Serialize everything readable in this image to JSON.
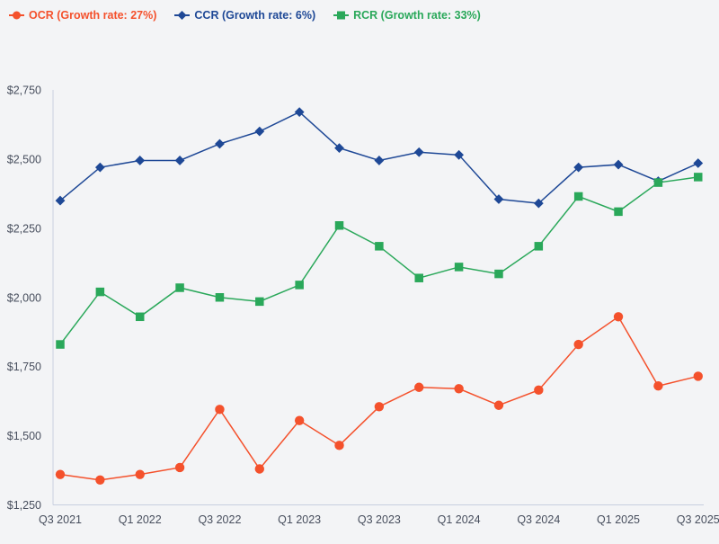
{
  "page": {
    "background": "#f3f4f6"
  },
  "chart_data": {
    "type": "line",
    "x": [
      "Q3 2021",
      "Q4 2021",
      "Q1 2022",
      "Q2 2022",
      "Q3 2022",
      "Q4 2022",
      "Q1 2023",
      "Q2 2023",
      "Q3 2023",
      "Q4 2023",
      "Q1 2024",
      "Q2 2024",
      "Q3 2024",
      "Q4 2024",
      "Q1 2025",
      "Q2 2025",
      "Q3 2025"
    ],
    "x_tick_labels": [
      "Q3 2021",
      "Q1 2022",
      "Q3 2022",
      "Q1 2023",
      "Q3 2023",
      "Q1 2024",
      "Q3 2024",
      "Q1 2025",
      "Q3 2025"
    ],
    "y_ticks": [
      1250,
      1500,
      1750,
      2000,
      2250,
      2500,
      2750
    ],
    "y_tick_labels": [
      "$1,250",
      "$1,500",
      "$1,750",
      "$2,000",
      "$2,250",
      "$2,500",
      "$2,750"
    ],
    "ylim": [
      1250,
      2750
    ],
    "grid": false,
    "legend_position": "top-left",
    "axis_color": "#c8cfe0",
    "tick_color": "#474e5d",
    "series": [
      {
        "name": "OCR",
        "label": "OCR (Growth rate: 27%)",
        "growth_rate": "27%",
        "color": "#f4512c",
        "marker": "circle",
        "values": [
          1360,
          1340,
          1360,
          1385,
          1595,
          1380,
          1555,
          1465,
          1605,
          1675,
          1670,
          1610,
          1665,
          1830,
          1930,
          1680,
          1715
        ]
      },
      {
        "name": "CCR",
        "label": "CCR (Growth rate: 6%)",
        "growth_rate": "6%",
        "color": "#1e4896",
        "marker": "diamond",
        "values": [
          2350,
          2470,
          2495,
          2495,
          2555,
          2600,
          2670,
          2540,
          2495,
          2525,
          2515,
          2355,
          2340,
          2470,
          2480,
          2420,
          2485
        ]
      },
      {
        "name": "RCR",
        "label": "RCR (Growth rate: 33%)",
        "growth_rate": "33%",
        "color": "#2aa85a",
        "marker": "square",
        "values": [
          1830,
          2020,
          1930,
          2035,
          2000,
          1985,
          2045,
          2260,
          2185,
          2070,
          2110,
          2085,
          2185,
          2365,
          2310,
          2415,
          2435
        ]
      }
    ]
  }
}
